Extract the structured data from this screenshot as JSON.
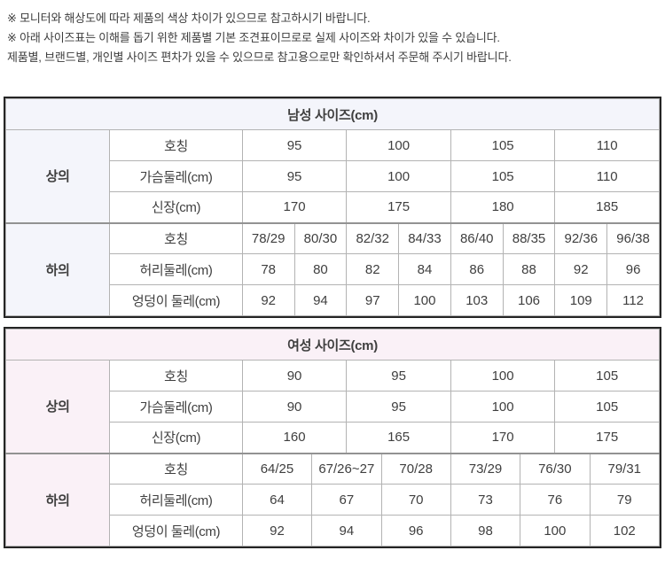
{
  "notes": {
    "line1": "※ 모니터와 해상도에 따라 제품의 색상 차이가 있으므로 참고하시기 바랍니다.",
    "line2": "※ 아래 사이즈표는 이해를 돕기 위한 제품별 기본 조견표이므로로 실제 사이즈와 차이가 있을 수 있습니다.",
    "line3": "제품별, 브랜드별, 개인별 사이즈 편차가 있을 수 있으므로 참고용으로만 확인하셔서 주문해 주시기 바랍니다."
  },
  "colors": {
    "men_tint": "#f4f5fb",
    "women_tint": "#faf1f7",
    "outer_border": "#252525",
    "section_divider": "#929292",
    "grid_line": "#b3b3b3",
    "text": "#3f3f3f"
  },
  "men_table": {
    "title": "남성 사이즈(cm)",
    "tint": "#f4f5fb",
    "sections": [
      {
        "label": "상의",
        "rows": [
          {
            "header": "호칭",
            "values": [
              "95",
              "100",
              "105",
              "110"
            ]
          },
          {
            "header": "가슴둘레(cm)",
            "values": [
              "95",
              "100",
              "105",
              "110"
            ]
          },
          {
            "header": "신장(cm)",
            "values": [
              "170",
              "175",
              "180",
              "185"
            ]
          }
        ]
      },
      {
        "label": "하의",
        "rows": [
          {
            "header": "호칭",
            "values": [
              "78/29",
              "80/30",
              "82/32",
              "84/33",
              "86/40",
              "88/35",
              "92/36",
              "96/38"
            ]
          },
          {
            "header": "허리둘레(cm)",
            "values": [
              "78",
              "80",
              "82",
              "84",
              "86",
              "88",
              "92",
              "96"
            ]
          },
          {
            "header": "엉덩이 둘레(cm)",
            "values": [
              "92",
              "94",
              "97",
              "100",
              "103",
              "106",
              "109",
              "112"
            ]
          }
        ]
      }
    ]
  },
  "women_table": {
    "title": "여성 사이즈(cm)",
    "tint": "#faf1f7",
    "sections": [
      {
        "label": "상의",
        "rows": [
          {
            "header": "호칭",
            "values": [
              "90",
              "95",
              "100",
              "105"
            ]
          },
          {
            "header": "가슴둘레(cm)",
            "values": [
              "90",
              "95",
              "100",
              "105"
            ]
          },
          {
            "header": "신장(cm)",
            "values": [
              "160",
              "165",
              "170",
              "175"
            ]
          }
        ]
      },
      {
        "label": "하의",
        "rows": [
          {
            "header": "호칭",
            "values": [
              "64/25",
              "67/26~27",
              "70/28",
              "73/29",
              "76/30",
              "79/31"
            ]
          },
          {
            "header": "허리둘레(cm)",
            "values": [
              "64",
              "67",
              "70",
              "73",
              "76",
              "79"
            ]
          },
          {
            "header": "엉덩이 둘레(cm)",
            "values": [
              "92",
              "94",
              "96",
              "98",
              "100",
              "102"
            ]
          }
        ]
      }
    ]
  }
}
